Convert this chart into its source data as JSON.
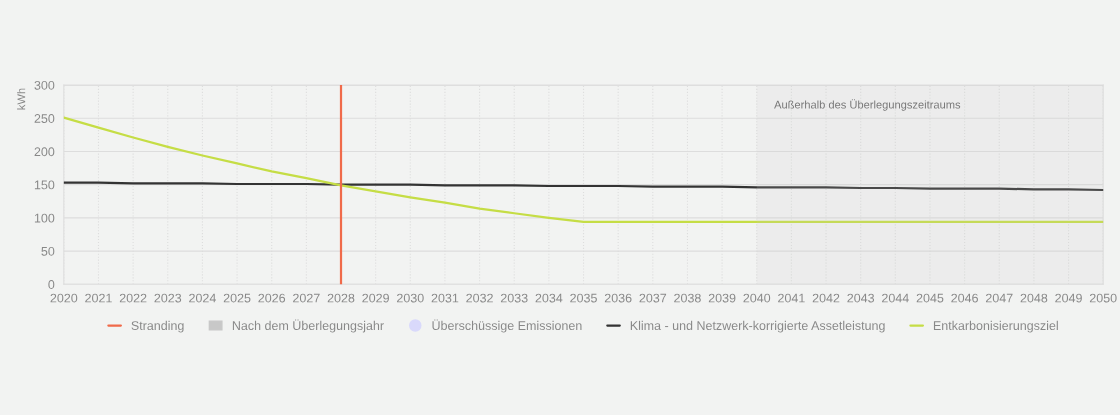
{
  "chart_data": {
    "type": "line",
    "ylabel": "kWh",
    "x": [
      2020,
      2021,
      2022,
      2023,
      2024,
      2025,
      2026,
      2027,
      2028,
      2029,
      2030,
      2031,
      2032,
      2033,
      2034,
      2035,
      2036,
      2037,
      2038,
      2039,
      2040,
      2041,
      2042,
      2043,
      2044,
      2045,
      2046,
      2047,
      2048,
      2049,
      2050
    ],
    "series": [
      {
        "name": "Überschüssige Emissionen",
        "type": "area",
        "color": "#d9d9fb",
        "values": [
          null,
          null,
          null,
          null,
          null,
          null,
          null,
          null,
          null,
          null,
          null,
          null,
          null,
          null,
          null,
          null,
          null,
          null,
          null,
          null,
          null,
          null,
          null,
          null,
          null,
          null,
          null,
          null,
          null,
          null,
          null
        ]
      },
      {
        "name": "Klima - und Netzwerk-korrigierte Assetleistung",
        "color": "#333333",
        "values": [
          153,
          153,
          152,
          152,
          152,
          151,
          151,
          151,
          150,
          150,
          150,
          149,
          149,
          149,
          148,
          148,
          148,
          147,
          147,
          147,
          146,
          146,
          146,
          145,
          145,
          144,
          144,
          144,
          143,
          143,
          142
        ]
      },
      {
        "name": "Entkarbonisierungsziel",
        "color": "#c5dd45",
        "values": [
          251,
          236,
          221,
          207,
          194,
          182,
          170,
          160,
          149,
          140,
          131,
          123,
          114,
          107,
          100,
          94,
          94,
          94,
          94,
          94,
          94,
          94,
          94,
          94,
          94,
          94,
          94,
          94,
          94,
          94,
          94
        ]
      }
    ],
    "ref_lines": [
      {
        "axis": "x",
        "value": 2028,
        "label": "Stranding",
        "color": "#f06a4a"
      }
    ],
    "bands": [
      {
        "axis": "x",
        "from": 2040,
        "to": 2050,
        "label": "Nach dem Überlegungsjahr",
        "color": "#c8c8c8"
      }
    ],
    "annotations": [
      "Außerhalb des Überlegungszeitraums"
    ],
    "xlim": [
      2020,
      2050
    ],
    "xticks": [
      2020,
      2021,
      2022,
      2023,
      2024,
      2025,
      2026,
      2027,
      2028,
      2029,
      2030,
      2031,
      2032,
      2033,
      2034,
      2035,
      2036,
      2037,
      2038,
      2039,
      2040,
      2041,
      2042,
      2043,
      2044,
      2045,
      2046,
      2047,
      2048,
      2049,
      2050
    ],
    "ylim": [
      0,
      300
    ],
    "yticks": [
      0,
      50,
      100,
      150,
      200,
      250,
      300
    ],
    "grid": true,
    "legend": "bottom"
  }
}
